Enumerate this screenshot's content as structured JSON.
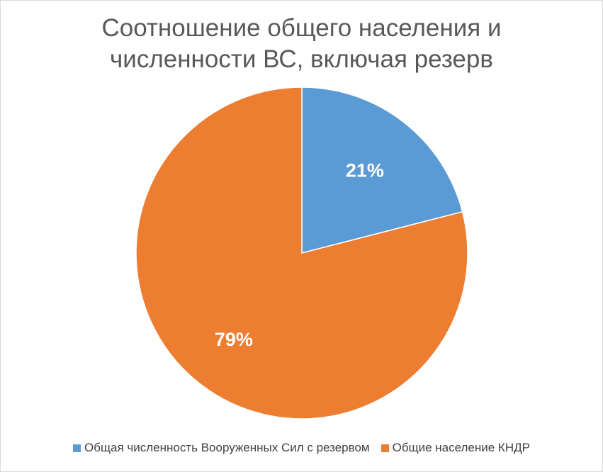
{
  "chart_data": {
    "type": "pie",
    "title": "Соотношение общего населения и\nчисленности ВС, включая резерв",
    "categories": [
      "Общая численность Вооруженных Сил с резервом",
      "Общие население КНДР"
    ],
    "values": [
      21,
      79
    ],
    "data_labels": [
      "21%",
      "79%"
    ],
    "colors": [
      "#5B9BD5",
      "#ED7D31"
    ],
    "legend_position": "bottom"
  }
}
